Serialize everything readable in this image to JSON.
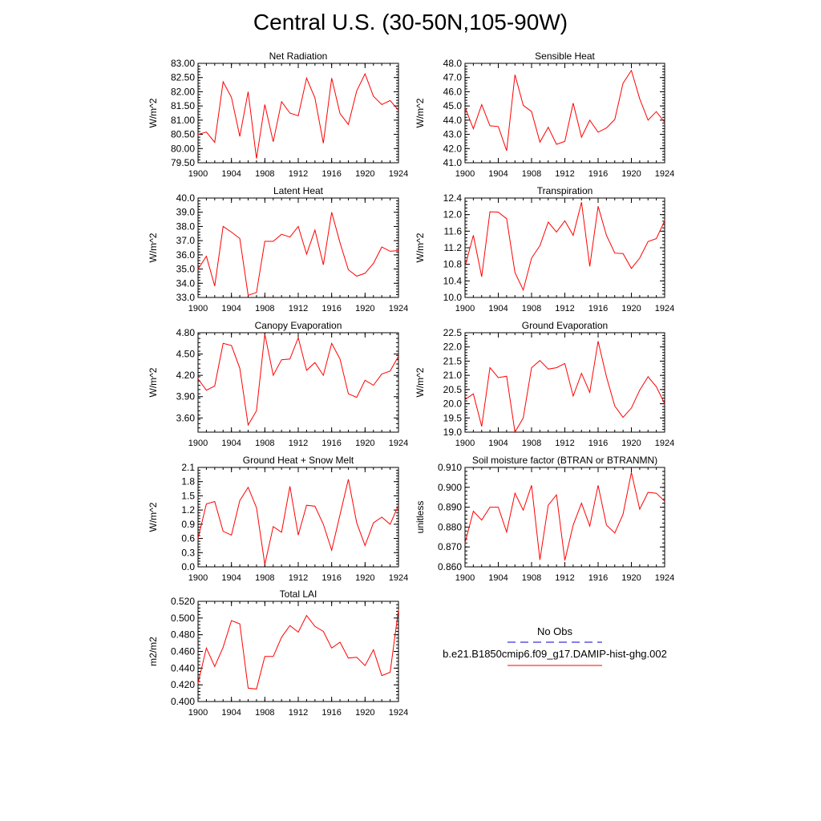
{
  "page": {
    "title": "Central U.S. (30-50N,105-90W)"
  },
  "colors": {
    "model": "#ff0000",
    "obs": "#0000cc",
    "axis": "#000000"
  },
  "legend": {
    "obs_label": "No Obs",
    "model_label": "b.e21.B1850cmip6.f09_g17.DAMIP-hist-ghg.002"
  },
  "chart_data": [
    {
      "type": "line",
      "title": "Net Radiation",
      "ylabel": "W/m^2",
      "xlim": [
        1900,
        1924
      ],
      "ylim": [
        79.5,
        83.0
      ],
      "x_ticks": [
        "1900",
        "1904",
        "1908",
        "1912",
        "1916",
        "1920",
        "1924"
      ],
      "y_ticks": [
        "79.50",
        "80.00",
        "80.50",
        "81.00",
        "81.50",
        "82.00",
        "82.50",
        "83.00"
      ],
      "x": [
        1900,
        1901,
        1902,
        1903,
        1904,
        1905,
        1906,
        1907,
        1908,
        1909,
        1910,
        1911,
        1912,
        1913,
        1914,
        1915,
        1916,
        1917,
        1918,
        1919,
        1920,
        1921,
        1922,
        1923,
        1924
      ],
      "series": [
        {
          "values": [
            80.5,
            80.58,
            80.22,
            82.35,
            81.8,
            80.43,
            82.0,
            79.65,
            81.55,
            80.24,
            81.65,
            81.25,
            81.15,
            82.48,
            81.78,
            80.19,
            82.48,
            81.23,
            80.85,
            82.03,
            82.63,
            81.84,
            81.55,
            81.69,
            81.35
          ]
        }
      ]
    },
    {
      "type": "line",
      "title": "Sensible Heat",
      "ylabel": "W/m^2",
      "xlim": [
        1900,
        1924
      ],
      "ylim": [
        41.0,
        48.0
      ],
      "x_ticks": [
        "1900",
        "1904",
        "1908",
        "1912",
        "1916",
        "1920",
        "1924"
      ],
      "y_ticks": [
        "41.0",
        "42.0",
        "43.0",
        "44.0",
        "45.0",
        "46.0",
        "47.0",
        "48.0"
      ],
      "x": [
        1900,
        1901,
        1902,
        1903,
        1904,
        1905,
        1906,
        1907,
        1908,
        1909,
        1910,
        1911,
        1912,
        1913,
        1914,
        1915,
        1916,
        1917,
        1918,
        1919,
        1920,
        1921,
        1922,
        1923,
        1924
      ],
      "series": [
        {
          "values": [
            44.9,
            43.4,
            45.1,
            43.6,
            43.55,
            41.85,
            47.2,
            45.05,
            44.6,
            42.45,
            43.5,
            42.3,
            42.5,
            45.2,
            42.8,
            44.0,
            43.15,
            43.45,
            44.05,
            46.6,
            47.5,
            45.5,
            44.0,
            44.6,
            43.85
          ]
        }
      ]
    },
    {
      "type": "line",
      "title": "Latent Heat",
      "ylabel": "W/m^2",
      "xlim": [
        1900,
        1924
      ],
      "ylim": [
        33.0,
        40.0
      ],
      "x_ticks": [
        "1900",
        "1904",
        "1908",
        "1912",
        "1916",
        "1920",
        "1924"
      ],
      "y_ticks": [
        "33.0",
        "34.0",
        "35.0",
        "36.0",
        "37.0",
        "38.0",
        "39.0",
        "40.0"
      ],
      "x": [
        1900,
        1901,
        1902,
        1903,
        1904,
        1905,
        1906,
        1907,
        1908,
        1909,
        1910,
        1911,
        1912,
        1913,
        1914,
        1915,
        1916,
        1917,
        1918,
        1919,
        1920,
        1921,
        1922,
        1923,
        1924
      ],
      "series": [
        {
          "values": [
            35.0,
            35.9,
            33.8,
            38.0,
            37.6,
            37.15,
            33.15,
            33.35,
            36.95,
            36.95,
            37.45,
            37.25,
            38.0,
            36.05,
            37.75,
            35.3,
            39.0,
            36.85,
            34.95,
            34.5,
            34.7,
            35.4,
            36.55,
            36.25,
            36.3
          ]
        }
      ]
    },
    {
      "type": "line",
      "title": "Transpiration",
      "ylabel": "W/m^2",
      "xlim": [
        1900,
        1924
      ],
      "ylim": [
        10.0,
        12.4
      ],
      "x_ticks": [
        "1900",
        "1904",
        "1908",
        "1912",
        "1916",
        "1920",
        "1924"
      ],
      "y_ticks": [
        "10.0",
        "10.4",
        "10.8",
        "11.2",
        "11.6",
        "12.0",
        "12.4"
      ],
      "x": [
        1900,
        1901,
        1902,
        1903,
        1904,
        1905,
        1906,
        1907,
        1908,
        1909,
        1910,
        1911,
        1912,
        1913,
        1914,
        1915,
        1916,
        1917,
        1918,
        1919,
        1920,
        1921,
        1922,
        1923,
        1924
      ],
      "series": [
        {
          "values": [
            10.75,
            11.5,
            10.5,
            12.07,
            12.06,
            11.9,
            10.6,
            10.18,
            10.95,
            11.25,
            11.82,
            11.58,
            11.85,
            11.5,
            12.3,
            10.75,
            12.2,
            11.5,
            11.07,
            11.06,
            10.7,
            10.95,
            11.35,
            11.42,
            11.85
          ]
        }
      ]
    },
    {
      "type": "line",
      "title": "Canopy Evaporation",
      "ylabel": "W/m^2",
      "xlim": [
        1900,
        1924
      ],
      "ylim": [
        3.4,
        4.8
      ],
      "x_ticks": [
        "1900",
        "1904",
        "1908",
        "1912",
        "1916",
        "1920",
        "1924"
      ],
      "y_ticks": [
        "3.60",
        "3.90",
        "4.20",
        "4.50",
        "4.80"
      ],
      "x": [
        1900,
        1901,
        1902,
        1903,
        1904,
        1905,
        1906,
        1907,
        1908,
        1909,
        1910,
        1911,
        1912,
        1913,
        1914,
        1915,
        1916,
        1917,
        1918,
        1919,
        1920,
        1921,
        1922,
        1923,
        1924
      ],
      "series": [
        {
          "values": [
            4.15,
            3.99,
            4.05,
            4.65,
            4.62,
            4.3,
            3.5,
            3.7,
            4.78,
            4.2,
            4.42,
            4.43,
            4.73,
            4.27,
            4.38,
            4.2,
            4.65,
            4.43,
            3.94,
            3.89,
            4.13,
            4.06,
            4.22,
            4.26,
            4.47
          ]
        }
      ]
    },
    {
      "type": "line",
      "title": "Ground Evaporation",
      "ylabel": "W/m^2",
      "xlim": [
        1900,
        1924
      ],
      "ylim": [
        19.0,
        22.5
      ],
      "x_ticks": [
        "1900",
        "1904",
        "1908",
        "1912",
        "1916",
        "1920",
        "1924"
      ],
      "y_ticks": [
        "19.0",
        "19.5",
        "20.0",
        "20.5",
        "21.0",
        "21.5",
        "22.0",
        "22.5"
      ],
      "x": [
        1900,
        1901,
        1902,
        1903,
        1904,
        1905,
        1906,
        1907,
        1908,
        1909,
        1910,
        1911,
        1912,
        1913,
        1914,
        1915,
        1916,
        1917,
        1918,
        1919,
        1920,
        1921,
        1922,
        1923,
        1924
      ],
      "series": [
        {
          "values": [
            20.15,
            20.35,
            19.2,
            21.27,
            20.92,
            20.97,
            19.0,
            19.5,
            21.27,
            21.52,
            21.22,
            21.27,
            21.42,
            20.27,
            21.07,
            20.4,
            22.2,
            20.95,
            19.92,
            19.52,
            19.85,
            20.48,
            20.95,
            20.6,
            20.0
          ]
        }
      ]
    },
    {
      "type": "line",
      "title": "Ground Heat + Snow Melt",
      "ylabel": "W/m^2",
      "xlim": [
        1900,
        1924
      ],
      "ylim": [
        0.0,
        2.1
      ],
      "x_ticks": [
        "1900",
        "1904",
        "1908",
        "1912",
        "1916",
        "1920",
        "1924"
      ],
      "y_ticks": [
        "0.0",
        "0.3",
        "0.6",
        "0.9",
        "1.2",
        "1.5",
        "1.8",
        "2.1"
      ],
      "x": [
        1900,
        1901,
        1902,
        1903,
        1904,
        1905,
        1906,
        1907,
        1908,
        1909,
        1910,
        1911,
        1912,
        1913,
        1914,
        1915,
        1916,
        1917,
        1918,
        1919,
        1920,
        1921,
        1922,
        1923,
        1924
      ],
      "series": [
        {
          "values": [
            0.6,
            1.33,
            1.38,
            0.75,
            0.67,
            1.4,
            1.68,
            1.25,
            0.05,
            0.85,
            0.73,
            1.7,
            0.67,
            1.3,
            1.28,
            0.9,
            0.35,
            1.1,
            1.85,
            0.93,
            0.45,
            0.93,
            1.05,
            0.9,
            1.3
          ]
        }
      ]
    },
    {
      "type": "line",
      "title": "Soil moisture factor (BTRAN or BTRANMN)",
      "ylabel": "unitless",
      "xlim": [
        1900,
        1924
      ],
      "ylim": [
        0.86,
        0.91
      ],
      "x_ticks": [
        "1900",
        "1904",
        "1908",
        "1912",
        "1916",
        "1920",
        "1924"
      ],
      "y_ticks": [
        "0.860",
        "0.870",
        "0.880",
        "0.890",
        "0.900",
        "0.910"
      ],
      "x": [
        1900,
        1901,
        1902,
        1903,
        1904,
        1905,
        1906,
        1907,
        1908,
        1909,
        1910,
        1911,
        1912,
        1913,
        1914,
        1915,
        1916,
        1917,
        1918,
        1919,
        1920,
        1921,
        1922,
        1923,
        1924
      ],
      "series": [
        {
          "values": [
            0.872,
            0.888,
            0.8835,
            0.89,
            0.89,
            0.8775,
            0.897,
            0.8885,
            0.901,
            0.8635,
            0.891,
            0.8962,
            0.8632,
            0.881,
            0.892,
            0.8805,
            0.901,
            0.881,
            0.877,
            0.8865,
            0.9075,
            0.889,
            0.8975,
            0.897,
            0.893
          ]
        }
      ]
    },
    {
      "type": "line",
      "title": "Total LAI",
      "ylabel": "m2/m2",
      "xlim": [
        1900,
        1924
      ],
      "ylim": [
        0.4,
        0.52
      ],
      "x_ticks": [
        "1900",
        "1904",
        "1908",
        "1912",
        "1916",
        "1920",
        "1924"
      ],
      "y_ticks": [
        "0.400",
        "0.420",
        "0.440",
        "0.460",
        "0.480",
        "0.500",
        "0.520"
      ],
      "x": [
        1900,
        1901,
        1902,
        1903,
        1904,
        1905,
        1906,
        1907,
        1908,
        1909,
        1910,
        1911,
        1912,
        1913,
        1914,
        1915,
        1916,
        1917,
        1918,
        1919,
        1920,
        1921,
        1922,
        1923,
        1924
      ],
      "series": [
        {
          "values": [
            0.422,
            0.464,
            0.442,
            0.465,
            0.497,
            0.493,
            0.416,
            0.415,
            0.454,
            0.454,
            0.477,
            0.491,
            0.483,
            0.503,
            0.49,
            0.484,
            0.464,
            0.471,
            0.452,
            0.453,
            0.443,
            0.462,
            0.431,
            0.435,
            0.51
          ]
        }
      ]
    }
  ]
}
